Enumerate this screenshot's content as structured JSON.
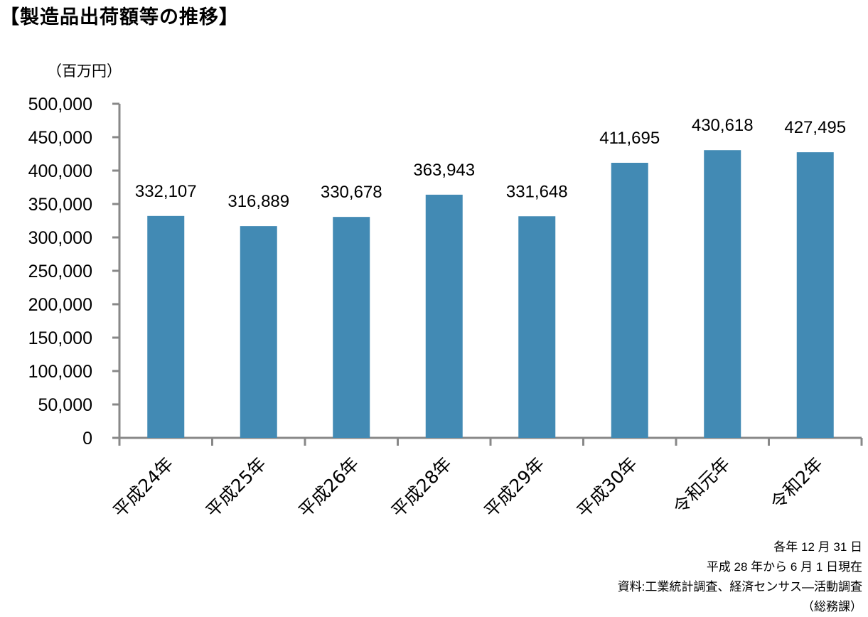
{
  "title": "【製造品出荷額等の推移】",
  "chart_data": {
    "type": "bar",
    "title": "【製造品出荷額等の推移】",
    "ylabel": "（百万円）",
    "xlabel": "",
    "categories": [
      "平成24年",
      "平成25年",
      "平成26年",
      "平成28年",
      "平成29年",
      "平成30年",
      "令和元年",
      "令和2年"
    ],
    "values": [
      332107,
      316889,
      330678,
      363943,
      331648,
      411695,
      430618,
      427495
    ],
    "data_labels": [
      "332,107",
      "316,889",
      "330,678",
      "363,943",
      "331,648",
      "411,695",
      "430,618",
      "427,495"
    ],
    "ylim": [
      0,
      500000
    ],
    "yticks": [
      0,
      50000,
      100000,
      150000,
      200000,
      250000,
      300000,
      350000,
      400000,
      450000,
      500000
    ],
    "ytick_labels": [
      "0",
      "50,000",
      "100,000",
      "150,000",
      "200,000",
      "250,000",
      "300,000",
      "350,000",
      "400,000",
      "450,000",
      "500,000"
    ],
    "grid": false,
    "legend": "none",
    "bar_color": "#428AB4",
    "axis_color": "#888888"
  },
  "notes": [
    "各年 12 月 31 日",
    "平成 28 年から 6 月 1 日現在",
    "資料:工業統計調査、経済センサス―活動調査",
    "（総務課）"
  ]
}
